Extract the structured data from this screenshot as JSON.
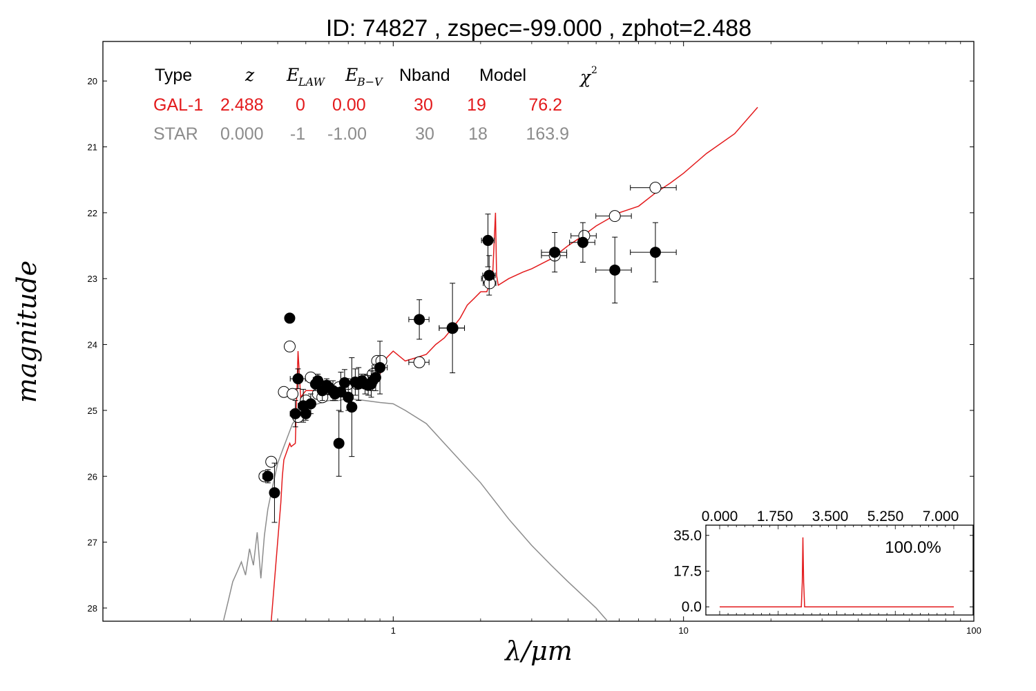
{
  "chart_data": {
    "type": "scatter",
    "title": "ID:  74827 , zspec=-99.000 , zphot=2.488",
    "xlabel": "λ/μm",
    "ylabel": "magnitude",
    "x_scale": "log",
    "xlim": [
      0.1,
      100
    ],
    "ylim": [
      28.2,
      19.4
    ],
    "y_inverted": true,
    "x_tick_labels": [
      "1",
      "10",
      "100"
    ],
    "y_tick_labels": [
      "20",
      "21",
      "22",
      "23",
      "24",
      "25",
      "26",
      "27",
      "28"
    ],
    "y_ticks": [
      20,
      21,
      22,
      23,
      24,
      25,
      26,
      27,
      28
    ],
    "table": {
      "header": [
        "Type",
        "z",
        "E_LAW",
        "E_B-V",
        "Nband",
        "Model",
        "χ²"
      ],
      "rows": [
        {
          "type": "GAL-1",
          "z": "2.488",
          "e_law": "0",
          "e_bv": "0.00",
          "nband": "30",
          "model": "19",
          "chi2": "76.2",
          "color": "#e31a1c"
        },
        {
          "type": "STAR",
          "z": "0.000",
          "e_law": "-1",
          "e_bv": "-1.00",
          "nband": "30",
          "model": "18",
          "chi2": "163.9",
          "color": "#8c8c8c"
        }
      ]
    },
    "series": [
      {
        "name": "GAL-1",
        "kind": "line",
        "color": "#e31a1c",
        "x": [
          0.38,
          0.41,
          0.415,
          0.42,
          0.44,
          0.445,
          0.46,
          0.47,
          0.48,
          0.5,
          0.55,
          0.6,
          0.65,
          0.7,
          0.75,
          0.8,
          0.85,
          0.9,
          0.95,
          1.0,
          1.1,
          1.2,
          1.3,
          1.4,
          1.5,
          1.6,
          1.7,
          1.8,
          1.9,
          2.0,
          2.1,
          2.2,
          2.25,
          2.27,
          2.3,
          2.5,
          2.8,
          3.0,
          3.5,
          4.0,
          4.5,
          5.0,
          6.0,
          7.0,
          8.0,
          9.0,
          10.0,
          12.0,
          15.0,
          18.0
        ],
        "y": [
          28.2,
          26.4,
          26.0,
          25.75,
          25.5,
          25.55,
          25.5,
          24.1,
          24.8,
          24.7,
          24.7,
          24.65,
          24.6,
          24.65,
          24.55,
          24.55,
          24.5,
          24.45,
          24.2,
          24.1,
          24.25,
          24.2,
          24.15,
          24.0,
          23.9,
          23.75,
          23.6,
          23.4,
          23.3,
          23.2,
          23.2,
          22.95,
          22.0,
          22.95,
          23.1,
          23.0,
          22.9,
          22.85,
          22.7,
          22.5,
          22.35,
          22.2,
          22.0,
          21.9,
          21.7,
          21.55,
          21.4,
          21.1,
          20.8,
          20.4
        ]
      },
      {
        "name": "STAR",
        "kind": "line",
        "color": "#8c8c8c",
        "x": [
          0.26,
          0.27,
          0.28,
          0.29,
          0.3,
          0.31,
          0.32,
          0.33,
          0.34,
          0.35,
          0.36,
          0.37,
          0.38,
          0.4,
          0.42,
          0.45,
          0.48,
          0.5,
          0.55,
          0.6,
          0.65,
          0.7,
          0.8,
          0.9,
          1.0,
          1.1,
          1.3,
          1.5,
          2.0,
          2.5,
          3.0,
          3.5,
          4.0,
          5.0,
          6.0,
          7.0
        ],
        "y": [
          28.2,
          27.9,
          27.6,
          27.45,
          27.3,
          27.5,
          27.1,
          27.35,
          26.85,
          27.55,
          26.9,
          26.5,
          26.25,
          25.8,
          25.55,
          25.2,
          25.05,
          24.95,
          24.9,
          24.85,
          24.85,
          24.82,
          24.85,
          24.88,
          24.9,
          25.0,
          25.2,
          25.5,
          26.1,
          26.65,
          27.05,
          27.35,
          27.6,
          28.0,
          28.4,
          28.7
        ]
      },
      {
        "name": "observed",
        "kind": "points",
        "marker": "filled-circle",
        "x": [
          0.37,
          0.39,
          0.44,
          0.46,
          0.47,
          0.49,
          0.5,
          0.52,
          0.54,
          0.55,
          0.57,
          0.59,
          0.6,
          0.62,
          0.63,
          0.65,
          0.66,
          0.68,
          0.7,
          0.72,
          0.74,
          0.76,
          0.78,
          0.8,
          0.82,
          0.84,
          0.85,
          0.87,
          0.9,
          1.23,
          1.6,
          2.12,
          2.14,
          3.6,
          4.5,
          5.8,
          8.0
        ],
        "y": [
          26.0,
          26.25,
          23.6,
          25.05,
          24.52,
          24.93,
          25.05,
          24.9,
          24.6,
          24.55,
          24.7,
          24.62,
          24.65,
          24.7,
          24.75,
          25.5,
          24.72,
          24.58,
          24.8,
          24.95,
          24.57,
          24.6,
          24.55,
          24.6,
          24.62,
          24.6,
          24.55,
          24.5,
          24.35,
          23.62,
          23.75,
          22.42,
          22.95,
          22.6,
          22.45,
          22.87,
          22.6
        ],
        "yerr": [
          0.1,
          0.45,
          0.05,
          0.2,
          0.15,
          0.25,
          0.1,
          0.15,
          0.1,
          0.1,
          0.15,
          0.1,
          0.1,
          0.15,
          0.1,
          0.5,
          0.3,
          0.2,
          0.2,
          0.75,
          0.2,
          0.25,
          0.1,
          0.15,
          0.15,
          0.2,
          0.15,
          0.2,
          0.4,
          0.3,
          0.68,
          0.4,
          0.3,
          0.3,
          0.3,
          0.5,
          0.45
        ],
        "xerr_frac": [
          0.04,
          0.03,
          0.03,
          0.04,
          0.06,
          0.04,
          0.03,
          0.03,
          0.03,
          0.03,
          0.03,
          0.03,
          0.03,
          0.03,
          0.03,
          0.03,
          0.03,
          0.03,
          0.03,
          0.03,
          0.03,
          0.03,
          0.03,
          0.03,
          0.03,
          0.03,
          0.03,
          0.03,
          0.06,
          0.08,
          0.1,
          0.05,
          0.05,
          0.1,
          0.1,
          0.14,
          0.18
        ]
      },
      {
        "name": "model",
        "kind": "points",
        "marker": "open-circle",
        "x": [
          0.36,
          0.38,
          0.42,
          0.44,
          0.45,
          0.47,
          0.5,
          0.52,
          0.55,
          0.57,
          0.6,
          0.62,
          0.65,
          0.7,
          0.75,
          0.8,
          0.85,
          0.88,
          0.91,
          1.23,
          1.6,
          2.12,
          2.15,
          3.6,
          4.55,
          5.8,
          8.0
        ],
        "y": [
          26.0,
          25.78,
          24.72,
          24.03,
          24.75,
          25.1,
          24.85,
          24.5,
          24.75,
          24.8,
          24.68,
          24.7,
          24.65,
          24.6,
          24.6,
          24.55,
          24.45,
          24.25,
          24.25,
          24.27,
          23.75,
          23.0,
          23.07,
          22.65,
          22.35,
          22.05,
          21.62
        ],
        "xerr_frac": [
          0.04,
          0.03,
          0.03,
          0.03,
          0.03,
          0.03,
          0.03,
          0.03,
          0.03,
          0.03,
          0.03,
          0.03,
          0.03,
          0.03,
          0.03,
          0.03,
          0.03,
          0.03,
          0.03,
          0.08,
          0.1,
          0.05,
          0.05,
          0.1,
          0.1,
          0.14,
          0.18
        ]
      }
    ],
    "inset": {
      "type": "line",
      "x_tick_labels": [
        "0.000",
        "1.750",
        "3.500",
        "5.250",
        "7.000"
      ],
      "y_tick_labels": [
        "35.0",
        "17.5",
        "0.0"
      ],
      "xlim": [
        0,
        7
      ],
      "ylim": [
        -4,
        40
      ],
      "annotation": "100.0%",
      "color": "#e31a1c",
      "x": [
        0.0,
        2.44,
        2.47,
        2.488,
        2.51,
        2.54,
        7.0
      ],
      "y": [
        0.0,
        0.0,
        12.0,
        34.0,
        12.0,
        0.0,
        0.0
      ]
    }
  }
}
